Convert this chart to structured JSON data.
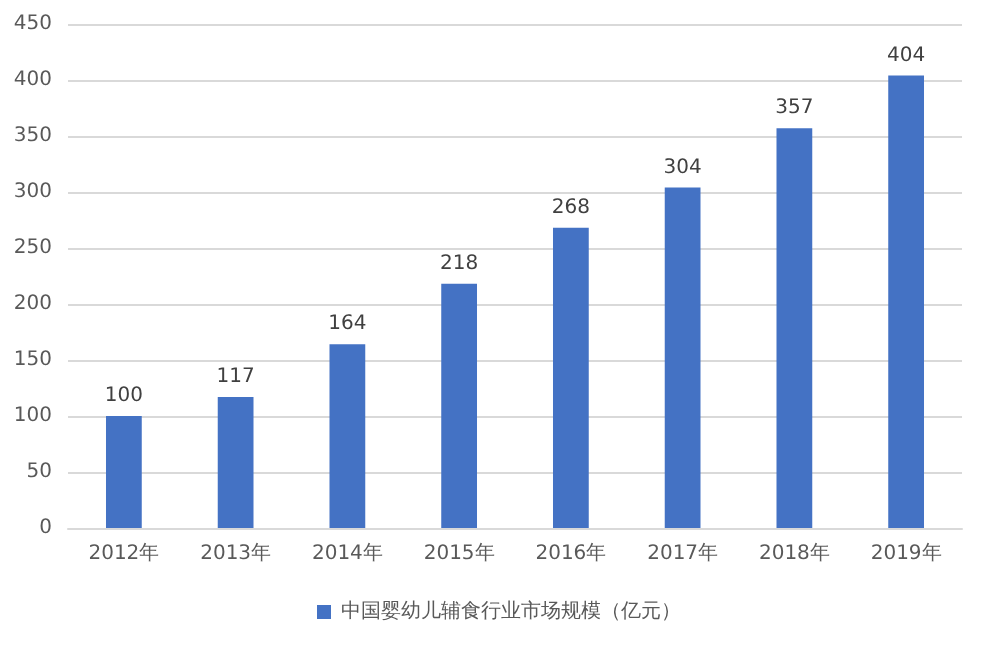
{
  "chart_data": {
    "type": "bar",
    "categories": [
      "2012年",
      "2013年",
      "2014年",
      "2015年",
      "2016年",
      "2017年",
      "2018年",
      "2019年"
    ],
    "series": [
      {
        "name": "中国婴幼儿辅食行业市场规模（亿元）",
        "color": "#4472c4",
        "values": [
          100,
          117,
          164,
          218,
          268,
          304,
          357,
          404
        ]
      }
    ],
    "ylim": [
      0,
      450
    ],
    "yticks": [
      0,
      50,
      100,
      150,
      200,
      250,
      300,
      350,
      400,
      450
    ],
    "grid": "y",
    "legend": "bottom",
    "data_labels": true
  }
}
